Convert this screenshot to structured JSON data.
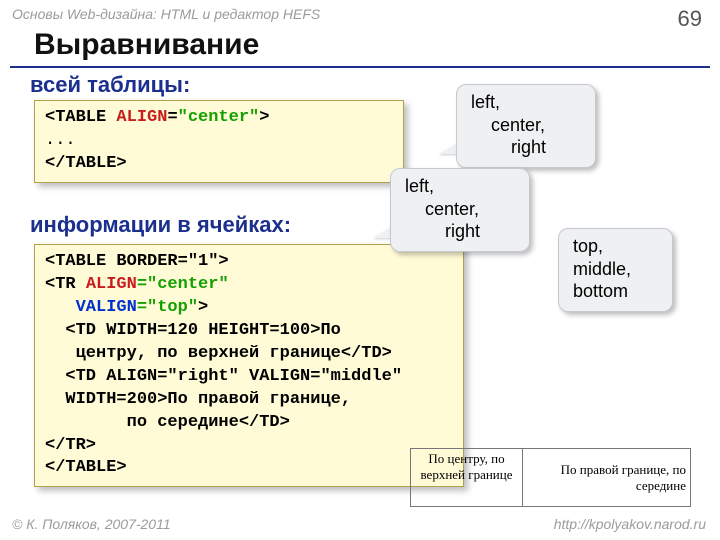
{
  "meta": {
    "topbar": "Основы Web-дизайна: HTML и редактор HEFS",
    "pagenum": "69",
    "title": "Выравнивание",
    "footer_left": "© К. Поляков, 2007-2011",
    "footer_right": "http://kpolyakov.narod.ru"
  },
  "subheadings": {
    "s1": "всей таблицы:",
    "s2": "информации в ячейках:"
  },
  "code1": {
    "open_tag": "<TABLE ",
    "attr": "ALIGN",
    "eq": "=",
    "val": "\"center\"",
    "close": ">",
    "dots": "...",
    "end": "</TABLE>"
  },
  "code2": {
    "l1": "<TABLE BORDER=\"1\">",
    "l2_open": "<TR ",
    "l2_attr": "ALIGN",
    "l2_val": "=\"center\"",
    "l3_attr": "VALIGN",
    "l3_val": "=\"top\"",
    "l3_close": ">",
    "l4": "  <TD WIDTH=120 HEIGHT=100>По",
    "l5": "   центру, по верхней границе</TD>",
    "l6": "  <TD ALIGN=\"right\" VALIGN=\"middle\"",
    "l7": "  WIDTH=200>По правой границе,",
    "l8": "        по середине</TD>",
    "l9": "</TR>",
    "l10": "</TABLE>"
  },
  "callouts": {
    "A": {
      "l1": "left,",
      "l2": "center,",
      "l3": "right"
    },
    "B": {
      "l1": "left,",
      "l2": "center,",
      "l3": "right"
    },
    "C": {
      "l1": "top,",
      "l2": "middle,",
      "l3": "bottom"
    }
  },
  "example": {
    "cellA": "По центру, по верхней границе",
    "cellB": "По правой границе, по середине"
  },
  "colors": {
    "accent": "#1b2f8f",
    "code_bg": "#fffbd6",
    "attr_red": "#c71e1e",
    "val_green": "#14a000",
    "valign_blue": "#0030d0",
    "callout_bg": "#eef0f2",
    "muted_text": "#9b9b9b"
  }
}
